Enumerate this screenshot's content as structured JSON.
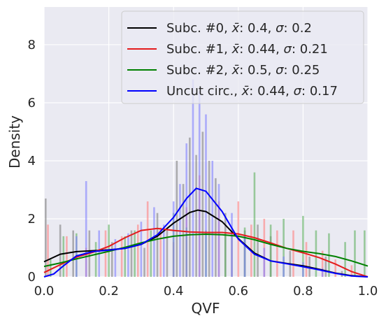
{
  "chart_data": {
    "type": "histogram",
    "xlabel": "QVF",
    "ylabel": "Density",
    "xlim": [
      0.0,
      1.0
    ],
    "ylim": [
      0,
      9.3
    ],
    "xticks": [
      "0.0",
      "0.2",
      "0.4",
      "0.6",
      "0.8",
      "1.0"
    ],
    "yticks": [
      "0",
      "2",
      "4",
      "6",
      "8"
    ],
    "grid": true,
    "legend_position": "top-right",
    "series": [
      {
        "name": "Subc. #0, x̄: 0.4, σ: 0.2",
        "legend": {
          "prefix": "Subc. #0, ",
          "mean": "0.4",
          "sigma": "0.2"
        },
        "color": "#000000",
        "bar_color": "#808080",
        "kde": [
          [
            0.0,
            0.52
          ],
          [
            0.05,
            0.78
          ],
          [
            0.1,
            0.87
          ],
          [
            0.15,
            0.9
          ],
          [
            0.2,
            0.93
          ],
          [
            0.25,
            0.98
          ],
          [
            0.3,
            1.12
          ],
          [
            0.35,
            1.4
          ],
          [
            0.4,
            1.85
          ],
          [
            0.45,
            2.22
          ],
          [
            0.475,
            2.3
          ],
          [
            0.5,
            2.25
          ],
          [
            0.55,
            1.9
          ],
          [
            0.6,
            1.32
          ],
          [
            0.65,
            0.82
          ],
          [
            0.7,
            0.55
          ],
          [
            0.75,
            0.46
          ],
          [
            0.8,
            0.38
          ],
          [
            0.85,
            0.26
          ],
          [
            0.9,
            0.13
          ],
          [
            0.95,
            0.04
          ],
          [
            1.0,
            0.0
          ]
        ],
        "bins": [
          [
            0.005,
            2.7
          ],
          [
            0.05,
            1.8
          ],
          [
            0.09,
            1.6
          ],
          [
            0.14,
            1.6
          ],
          [
            0.21,
            1.2
          ],
          [
            0.27,
            1.6
          ],
          [
            0.31,
            1.0
          ],
          [
            0.35,
            2.2
          ],
          [
            0.38,
            1.6
          ],
          [
            0.41,
            4.0
          ],
          [
            0.43,
            3.2
          ],
          [
            0.45,
            4.8
          ],
          [
            0.47,
            4.2
          ],
          [
            0.49,
            5.0
          ],
          [
            0.51,
            4.0
          ],
          [
            0.53,
            3.4
          ],
          [
            0.56,
            2.2
          ],
          [
            0.58,
            1.6
          ],
          [
            0.62,
            1.6
          ],
          [
            0.66,
            1.8
          ],
          [
            0.7,
            1.4
          ],
          [
            0.76,
            0.9
          ],
          [
            0.82,
            0.7
          ],
          [
            0.87,
            0.7
          ],
          [
            0.92,
            0.2
          ]
        ]
      },
      {
        "name": "Subc. #1, x̄: 0.44, σ: 0.21",
        "legend": {
          "prefix": "Subc. #1, ",
          "mean": "0.44",
          "sigma": "0.21"
        },
        "color": "#e41a1c",
        "bar_color": "#ff8080",
        "kde": [
          [
            0.0,
            0.15
          ],
          [
            0.05,
            0.42
          ],
          [
            0.1,
            0.68
          ],
          [
            0.15,
            0.84
          ],
          [
            0.2,
            1.05
          ],
          [
            0.25,
            1.35
          ],
          [
            0.3,
            1.6
          ],
          [
            0.35,
            1.67
          ],
          [
            0.4,
            1.6
          ],
          [
            0.45,
            1.55
          ],
          [
            0.5,
            1.53
          ],
          [
            0.55,
            1.53
          ],
          [
            0.6,
            1.48
          ],
          [
            0.65,
            1.35
          ],
          [
            0.7,
            1.17
          ],
          [
            0.75,
            0.98
          ],
          [
            0.8,
            0.83
          ],
          [
            0.85,
            0.66
          ],
          [
            0.9,
            0.44
          ],
          [
            0.95,
            0.18
          ],
          [
            1.0,
            0.0
          ]
        ],
        "bins": [
          [
            0.012,
            1.8
          ],
          [
            0.07,
            1.4
          ],
          [
            0.13,
            1.0
          ],
          [
            0.19,
            1.6
          ],
          [
            0.24,
            1.4
          ],
          [
            0.29,
            1.8
          ],
          [
            0.32,
            2.6
          ],
          [
            0.36,
            1.7
          ],
          [
            0.4,
            1.2
          ],
          [
            0.44,
            2.4
          ],
          [
            0.48,
            3.5
          ],
          [
            0.54,
            2.6
          ],
          [
            0.6,
            2.6
          ],
          [
            0.64,
            1.8
          ],
          [
            0.68,
            2.0
          ],
          [
            0.72,
            1.6
          ],
          [
            0.77,
            1.6
          ],
          [
            0.81,
            1.2
          ],
          [
            0.86,
            0.9
          ],
          [
            0.9,
            0.6
          ],
          [
            0.95,
            0.4
          ]
        ]
      },
      {
        "name": "Subc. #2, x̄: 0.5, σ: 0.25",
        "legend": {
          "prefix": "Subc. #2, ",
          "mean": "0.5",
          "sigma": "0.25"
        },
        "color": "#008000",
        "bar_color": "#60b060",
        "kde": [
          [
            0.0,
            0.36
          ],
          [
            0.05,
            0.48
          ],
          [
            0.1,
            0.62
          ],
          [
            0.15,
            0.75
          ],
          [
            0.2,
            0.88
          ],
          [
            0.25,
            1.02
          ],
          [
            0.3,
            1.17
          ],
          [
            0.35,
            1.3
          ],
          [
            0.4,
            1.4
          ],
          [
            0.45,
            1.45
          ],
          [
            0.5,
            1.47
          ],
          [
            0.55,
            1.45
          ],
          [
            0.6,
            1.4
          ],
          [
            0.65,
            1.28
          ],
          [
            0.7,
            1.12
          ],
          [
            0.75,
            0.98
          ],
          [
            0.8,
            0.88
          ],
          [
            0.85,
            0.8
          ],
          [
            0.9,
            0.7
          ],
          [
            0.95,
            0.55
          ],
          [
            1.0,
            0.37
          ]
        ],
        "bins": [
          [
            0.02,
            0.6
          ],
          [
            0.06,
            1.4
          ],
          [
            0.1,
            1.5
          ],
          [
            0.16,
            1.2
          ],
          [
            0.2,
            1.8
          ],
          [
            0.25,
            1.4
          ],
          [
            0.28,
            1.6
          ],
          [
            0.33,
            1.6
          ],
          [
            0.4,
            2.2
          ],
          [
            0.44,
            1.7
          ],
          [
            0.5,
            1.6
          ],
          [
            0.56,
            1.5
          ],
          [
            0.62,
            1.7
          ],
          [
            0.65,
            3.6
          ],
          [
            0.7,
            1.8
          ],
          [
            0.74,
            2.0
          ],
          [
            0.8,
            2.1
          ],
          [
            0.84,
            1.6
          ],
          [
            0.88,
            1.5
          ],
          [
            0.93,
            1.2
          ],
          [
            0.96,
            1.6
          ],
          [
            0.99,
            1.6
          ]
        ]
      },
      {
        "name": "Uncut circ., x̄: 0.44, σ: 0.17",
        "legend": {
          "prefix": "Uncut circ., ",
          "mean": "0.44",
          "sigma": "0.17"
        },
        "color": "#0000ff",
        "bar_color": "#8080ff",
        "kde": [
          [
            0.0,
            0.0
          ],
          [
            0.03,
            0.1
          ],
          [
            0.06,
            0.38
          ],
          [
            0.1,
            0.72
          ],
          [
            0.15,
            0.87
          ],
          [
            0.2,
            0.92
          ],
          [
            0.25,
            0.98
          ],
          [
            0.3,
            1.12
          ],
          [
            0.35,
            1.45
          ],
          [
            0.4,
            2.05
          ],
          [
            0.44,
            2.7
          ],
          [
            0.47,
            3.05
          ],
          [
            0.5,
            2.95
          ],
          [
            0.55,
            2.25
          ],
          [
            0.6,
            1.3
          ],
          [
            0.65,
            0.78
          ],
          [
            0.7,
            0.55
          ],
          [
            0.75,
            0.45
          ],
          [
            0.8,
            0.35
          ],
          [
            0.85,
            0.24
          ],
          [
            0.9,
            0.12
          ],
          [
            0.95,
            0.03
          ],
          [
            1.0,
            0.0
          ]
        ],
        "bins": [
          [
            0.1,
            1.4
          ],
          [
            0.13,
            3.3
          ],
          [
            0.17,
            1.6
          ],
          [
            0.22,
            1.3
          ],
          [
            0.26,
            1.5
          ],
          [
            0.3,
            1.9
          ],
          [
            0.34,
            2.4
          ],
          [
            0.37,
            1.8
          ],
          [
            0.4,
            2.6
          ],
          [
            0.42,
            3.2
          ],
          [
            0.44,
            4.6
          ],
          [
            0.46,
            6.8
          ],
          [
            0.48,
            6.4
          ],
          [
            0.5,
            5.6
          ],
          [
            0.52,
            4.0
          ],
          [
            0.54,
            3.2
          ],
          [
            0.58,
            2.2
          ],
          [
            0.62,
            1.4
          ],
          [
            0.68,
            1.0
          ],
          [
            0.74,
            0.7
          ],
          [
            0.8,
            0.5
          ],
          [
            0.86,
            0.3
          ]
        ]
      }
    ]
  }
}
